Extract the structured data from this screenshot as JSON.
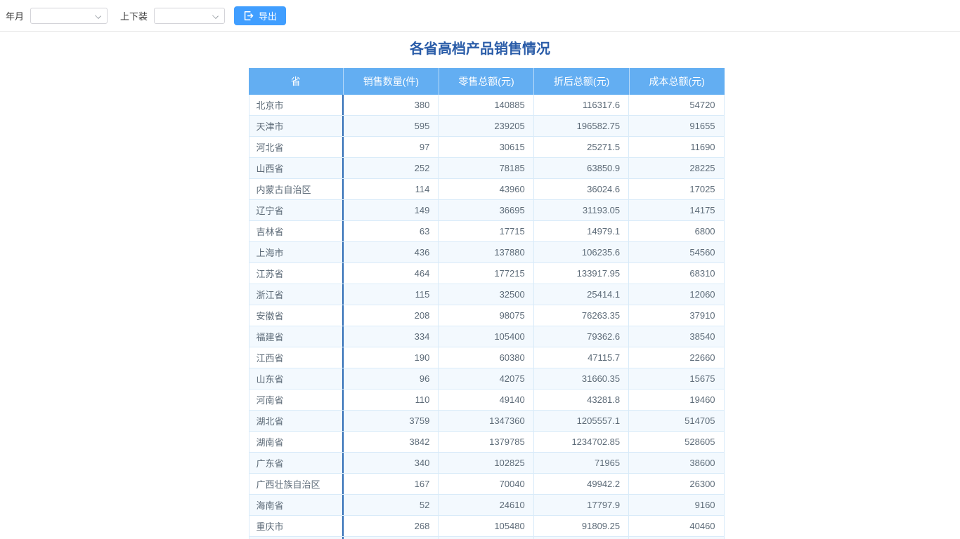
{
  "toolbar": {
    "year_month_label": "年月",
    "year_month_value": "",
    "category_label": "上下装",
    "category_value": "",
    "export_label": "导出"
  },
  "title": "各省高档产品销售情况",
  "table": {
    "headers": [
      "省",
      "销售数量(件)",
      "零售总额(元)",
      "折后总额(元)",
      "成本总额(元)"
    ],
    "rows": [
      [
        "北京市",
        "380",
        "140885",
        "116317.6",
        "54720"
      ],
      [
        "天津市",
        "595",
        "239205",
        "196582.75",
        "91655"
      ],
      [
        "河北省",
        "97",
        "30615",
        "25271.5",
        "11690"
      ],
      [
        "山西省",
        "252",
        "78185",
        "63850.9",
        "28225"
      ],
      [
        "内蒙古自治区",
        "114",
        "43960",
        "36024.6",
        "17025"
      ],
      [
        "辽宁省",
        "149",
        "36695",
        "31193.05",
        "14175"
      ],
      [
        "吉林省",
        "63",
        "17715",
        "14979.1",
        "6800"
      ],
      [
        "上海市",
        "436",
        "137880",
        "106235.6",
        "54560"
      ],
      [
        "江苏省",
        "464",
        "177215",
        "133917.95",
        "68310"
      ],
      [
        "浙江省",
        "115",
        "32500",
        "25414.1",
        "12060"
      ],
      [
        "安徽省",
        "208",
        "98075",
        "76263.35",
        "37910"
      ],
      [
        "福建省",
        "334",
        "105400",
        "79362.6",
        "38540"
      ],
      [
        "江西省",
        "190",
        "60380",
        "47115.7",
        "22660"
      ],
      [
        "山东省",
        "96",
        "42075",
        "31660.35",
        "15675"
      ],
      [
        "河南省",
        "110",
        "49140",
        "43281.8",
        "19460"
      ],
      [
        "湖北省",
        "3759",
        "1347360",
        "1205557.1",
        "514705"
      ],
      [
        "湖南省",
        "3842",
        "1379785",
        "1234702.85",
        "528605"
      ],
      [
        "广东省",
        "340",
        "102825",
        "71965",
        "38600"
      ],
      [
        "广西壮族自治区",
        "167",
        "70040",
        "49942.2",
        "26300"
      ],
      [
        "海南省",
        "52",
        "24610",
        "17797.9",
        "9160"
      ],
      [
        "重庆市",
        "268",
        "105480",
        "91809.25",
        "40460"
      ]
    ]
  },
  "icons": {
    "export": "export-icon",
    "chevron": "chevron-down-icon"
  },
  "colors": {
    "accent": "#409eff",
    "header_bg": "#63aef2",
    "title_color": "#2a5ca8",
    "alt_row_bg": "#f3f9fe",
    "border_light": "#d9ebf9",
    "divider_dark": "#2d6cb5"
  }
}
